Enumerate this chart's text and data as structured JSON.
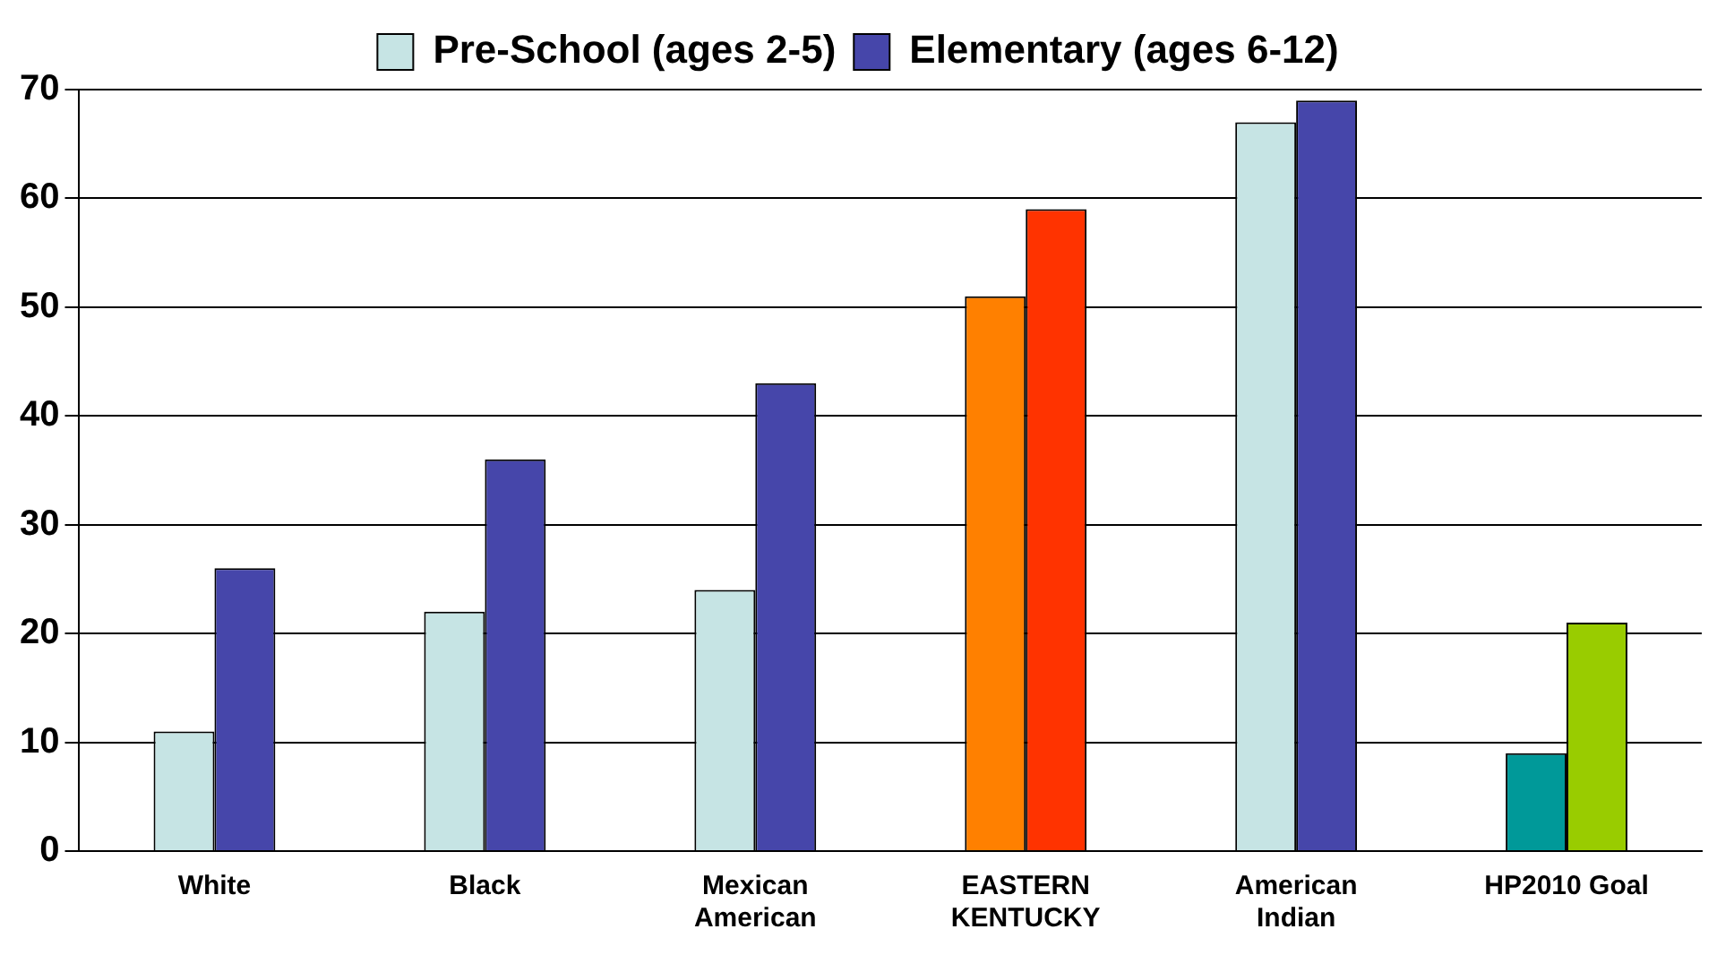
{
  "chart_data": {
    "type": "bar",
    "categories": [
      "White",
      "Black",
      "Mexican\nAmerican",
      "EASTERN\nKENTUCKY",
      "American\nIndian",
      "HP2010 Goal"
    ],
    "series": [
      {
        "name": "Pre-School (ages 2-5)",
        "color": "#c6e4e4",
        "colors": [
          "#c6e4e4",
          "#c6e4e4",
          "#c6e4e4",
          "#ff8000",
          "#c6e4e4",
          "#009999"
        ],
        "values": [
          11,
          22,
          24,
          51,
          67,
          9
        ]
      },
      {
        "name": "Elementary (ages 6-12)",
        "color": "#4646aa",
        "colors": [
          "#4646aa",
          "#4646aa",
          "#4646aa",
          "#ff3300",
          "#4646aa",
          "#99cc00"
        ],
        "values": [
          26,
          36,
          43,
          59,
          69,
          21
        ]
      }
    ],
    "ylim": [
      0,
      70
    ],
    "yticks": [
      0,
      10,
      20,
      30,
      40,
      50,
      60,
      70
    ],
    "grid": "y",
    "legend": "top"
  }
}
